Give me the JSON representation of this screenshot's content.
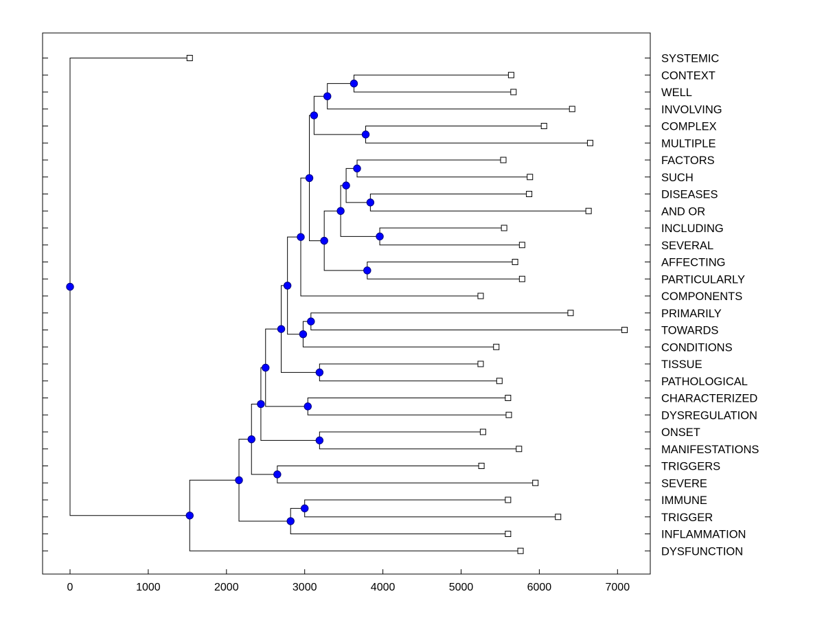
{
  "chart_data": {
    "type": "dendrogram",
    "title": "",
    "xlabel": "",
    "ylabel": "",
    "xlim": [
      -350,
      7450
    ],
    "x_ticks": [
      0,
      1000,
      2000,
      3000,
      4000,
      5000,
      6000,
      7000
    ],
    "grid": false,
    "colors": {
      "node_fill": "#0000ff",
      "node_stroke": "#000080",
      "line": "#000000",
      "leaf_marker_fill": "#ffffff"
    },
    "leaves": [
      {
        "label": "SYSTEMIC",
        "value": 1530
      },
      {
        "label": "CONTEXT",
        "value": 5640
      },
      {
        "label": "WELL",
        "value": 5670
      },
      {
        "label": "INVOLVING",
        "value": 6420
      },
      {
        "label": "COMPLEX",
        "value": 6060
      },
      {
        "label": "MULTIPLE",
        "value": 6650
      },
      {
        "label": "FACTORS",
        "value": 5540
      },
      {
        "label": "SUCH",
        "value": 5880
      },
      {
        "label": "DISEASES",
        "value": 5870
      },
      {
        "label": "AND OR",
        "value": 6630
      },
      {
        "label": "INCLUDING",
        "value": 5550
      },
      {
        "label": "SEVERAL",
        "value": 5780
      },
      {
        "label": "AFFECTING",
        "value": 5690
      },
      {
        "label": "PARTICULARLY",
        "value": 5780
      },
      {
        "label": "COMPONENTS",
        "value": 5250
      },
      {
        "label": "PRIMARILY",
        "value": 6400
      },
      {
        "label": "TOWARDS",
        "value": 7090
      },
      {
        "label": "CONDITIONS",
        "value": 5450
      },
      {
        "label": "TISSUE",
        "value": 5250
      },
      {
        "label": "PATHOLOGICAL",
        "value": 5490
      },
      {
        "label": "CHARACTERIZED",
        "value": 5600
      },
      {
        "label": "DYSREGULATION",
        "value": 5610
      },
      {
        "label": "ONSET",
        "value": 5280
      },
      {
        "label": "MANIFESTATIONS",
        "value": 5740
      },
      {
        "label": "TRIGGERS",
        "value": 5260
      },
      {
        "label": "SEVERE",
        "value": 5950
      },
      {
        "label": "IMMUNE",
        "value": 5600
      },
      {
        "label": "TRIGGER",
        "value": 6240
      },
      {
        "label": "INFLAMMATION",
        "value": 5600
      },
      {
        "label": "DYSFUNCTION",
        "value": 5760
      }
    ],
    "merges": [
      {
        "id": "m1",
        "value": 3630,
        "children": [
          "CONTEXT",
          "WELL"
        ]
      },
      {
        "id": "m2",
        "value": 3290,
        "children": [
          "m1",
          "INVOLVING"
        ]
      },
      {
        "id": "m3",
        "value": 3780,
        "children": [
          "COMPLEX",
          "MULTIPLE"
        ]
      },
      {
        "id": "m4",
        "value": 3120,
        "children": [
          "m2",
          "m3"
        ]
      },
      {
        "id": "m5",
        "value": 3670,
        "children": [
          "FACTORS",
          "SUCH"
        ]
      },
      {
        "id": "m6",
        "value": 3840,
        "children": [
          "DISEASES",
          "AND OR"
        ]
      },
      {
        "id": "m7",
        "value": 3530,
        "children": [
          "m5",
          "m6"
        ]
      },
      {
        "id": "m8",
        "value": 3960,
        "children": [
          "INCLUDING",
          "SEVERAL"
        ]
      },
      {
        "id": "m9",
        "value": 3460,
        "children": [
          "m7",
          "m8"
        ]
      },
      {
        "id": "m10",
        "value": 3800,
        "children": [
          "AFFECTING",
          "PARTICULARLY"
        ]
      },
      {
        "id": "m11",
        "value": 3250,
        "children": [
          "m9",
          "m10"
        ]
      },
      {
        "id": "m12",
        "value": 3060,
        "children": [
          "m4",
          "m11"
        ]
      },
      {
        "id": "m13",
        "value": 2950,
        "children": [
          "m12",
          "COMPONENTS"
        ]
      },
      {
        "id": "m14",
        "value": 3080,
        "children": [
          "PRIMARILY",
          "TOWARDS"
        ]
      },
      {
        "id": "m15",
        "value": 2980,
        "children": [
          "m14",
          "CONDITIONS"
        ]
      },
      {
        "id": "m16",
        "value": 2780,
        "children": [
          "m13",
          "m15"
        ]
      },
      {
        "id": "m17",
        "value": 3190,
        "children": [
          "TISSUE",
          "PATHOLOGICAL"
        ]
      },
      {
        "id": "m18",
        "value": 2700,
        "children": [
          "m16",
          "m17"
        ]
      },
      {
        "id": "m19",
        "value": 3040,
        "children": [
          "CHARACTERIZED",
          "DYSREGULATION"
        ]
      },
      {
        "id": "m20",
        "value": 2500,
        "children": [
          "m18",
          "m19"
        ]
      },
      {
        "id": "m21",
        "value": 3190,
        "children": [
          "ONSET",
          "MANIFESTATIONS"
        ]
      },
      {
        "id": "m22",
        "value": 2440,
        "children": [
          "m20",
          "m21"
        ]
      },
      {
        "id": "m23",
        "value": 2650,
        "children": [
          "TRIGGERS",
          "SEVERE"
        ]
      },
      {
        "id": "m24",
        "value": 2320,
        "children": [
          "m22",
          "m23"
        ]
      },
      {
        "id": "m25",
        "value": 3000,
        "children": [
          "IMMUNE",
          "TRIGGER"
        ]
      },
      {
        "id": "m26",
        "value": 2820,
        "children": [
          "m25",
          "INFLAMMATION"
        ]
      },
      {
        "id": "m27",
        "value": 2160,
        "children": [
          "m24",
          "m26"
        ]
      },
      {
        "id": "m28",
        "value": 1530,
        "children": [
          "m27",
          "DYSFUNCTION"
        ]
      },
      {
        "id": "m29",
        "value": 0,
        "children": [
          "SYSTEMIC",
          "m28"
        ]
      }
    ]
  }
}
